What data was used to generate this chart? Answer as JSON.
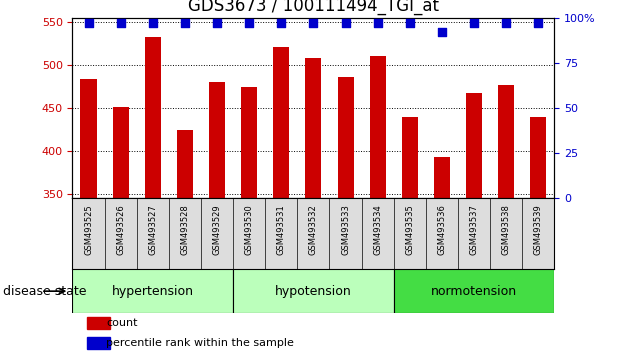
{
  "title": "GDS3673 / 100111494_TGI_at",
  "samples": [
    "GSM493525",
    "GSM493526",
    "GSM493527",
    "GSM493528",
    "GSM493529",
    "GSM493530",
    "GSM493531",
    "GSM493532",
    "GSM493533",
    "GSM493534",
    "GSM493535",
    "GSM493536",
    "GSM493537",
    "GSM493538",
    "GSM493539"
  ],
  "counts": [
    484,
    451,
    533,
    424,
    480,
    474,
    521,
    508,
    486,
    510,
    439,
    393,
    467,
    477,
    440
  ],
  "percentiles": [
    97,
    97,
    97,
    97,
    97,
    97,
    97,
    97,
    97,
    97,
    97,
    92,
    97,
    97,
    97
  ],
  "ylim_left": [
    345,
    555
  ],
  "ylim_right": [
    0,
    100
  ],
  "yticks_left": [
    350,
    400,
    450,
    500,
    550
  ],
  "yticks_right": [
    0,
    25,
    50,
    75,
    100
  ],
  "bar_color": "#cc0000",
  "dot_color": "#0000cc",
  "group_boundaries": [
    {
      "start": 0,
      "end": 4,
      "label": "hypertension",
      "color": "#bbffbb"
    },
    {
      "start": 5,
      "end": 9,
      "label": "hypotension",
      "color": "#bbffbb"
    },
    {
      "start": 10,
      "end": 14,
      "label": "normotension",
      "color": "#44dd44"
    }
  ],
  "group_label": "disease state",
  "legend_count": "count",
  "legend_pct": "percentile rank within the sample",
  "bar_width": 0.5,
  "dot_size": 40,
  "tick_label_color_left": "#cc0000",
  "tick_label_color_right": "#0000cc",
  "title_fontsize": 12,
  "tick_fontsize": 8,
  "group_text_fontsize": 9,
  "sample_fontsize": 6,
  "legend_fontsize": 8
}
